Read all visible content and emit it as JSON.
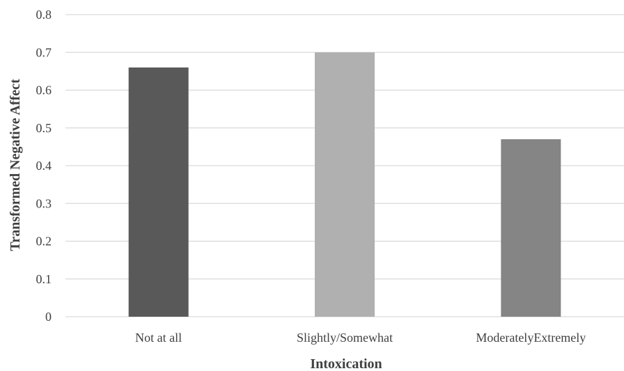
{
  "chart_data": {
    "type": "bar",
    "categories": [
      "Not at all",
      "Slightly/Somewhat",
      "ModeratelyExtremely"
    ],
    "values": [
      0.66,
      0.7,
      0.47
    ],
    "colors": [
      "#595959",
      "#b0b0b0",
      "#858585"
    ],
    "xlabel": "Intoxication",
    "ylabel": "Transformed Negative Affect",
    "ylim": [
      0,
      0.8
    ],
    "yticks": [
      "0",
      "0.1",
      "0.2",
      "0.3",
      "0.4",
      "0.5",
      "0.6",
      "0.7",
      "0.8"
    ],
    "grid": true,
    "gridline_color": "#d9d9d9"
  }
}
